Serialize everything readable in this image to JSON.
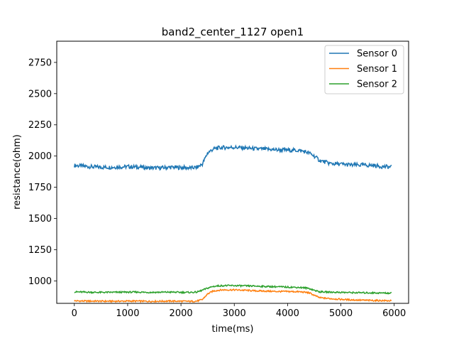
{
  "chart_data": {
    "type": "line",
    "title": "band2_center_1127 open1",
    "xlabel": "time(ms)",
    "ylabel": "resistance(ohm)",
    "xlim": [
      -330,
      6270
    ],
    "ylim": [
      820,
      2920
    ],
    "x_ticks": [
      0,
      1000,
      2000,
      3000,
      4000,
      5000,
      6000
    ],
    "y_ticks": [
      1000,
      1250,
      1500,
      1750,
      2000,
      2250,
      2500,
      2750
    ],
    "x_tick_labels": [
      "0",
      "1000",
      "2000",
      "3000",
      "4000",
      "5000",
      "6000"
    ],
    "y_tick_labels": [
      "1000",
      "1250",
      "1500",
      "1750",
      "2000",
      "2250",
      "2500",
      "2750"
    ],
    "grid": false,
    "legend_position": "top-right",
    "x": [
      0,
      200,
      400,
      600,
      800,
      1000,
      1200,
      1400,
      1600,
      1800,
      2000,
      2200,
      2300,
      2400,
      2500,
      2600,
      2700,
      2800,
      3000,
      3200,
      3400,
      3600,
      3800,
      4000,
      4200,
      4300,
      4400,
      4500,
      4600,
      4800,
      5000,
      5200,
      5400,
      5600,
      5800,
      5950
    ],
    "series": [
      {
        "name": "Sensor 0",
        "color": "#1f77b4",
        "values": [
          1925,
          1918,
          1912,
          1910,
          1912,
          1915,
          1912,
          1905,
          1905,
          1910,
          1908,
          1905,
          1910,
          1935,
          2025,
          2055,
          2065,
          2068,
          2070,
          2065,
          2058,
          2055,
          2050,
          2048,
          2045,
          2038,
          2025,
          2000,
          1965,
          1940,
          1935,
          1928,
          1928,
          1925,
          1915,
          1912
        ]
      },
      {
        "name": "Sensor 1",
        "color": "#ff7f0e",
        "values": [
          840,
          838,
          838,
          837,
          837,
          838,
          838,
          836,
          837,
          838,
          837,
          836,
          838,
          850,
          895,
          918,
          925,
          928,
          928,
          925,
          920,
          918,
          915,
          915,
          913,
          910,
          905,
          885,
          865,
          858,
          852,
          848,
          845,
          843,
          842,
          840
        ]
      },
      {
        "name": "Sensor 2",
        "color": "#2ca02c",
        "values": [
          912,
          910,
          908,
          908,
          909,
          910,
          910,
          908,
          909,
          910,
          908,
          908,
          910,
          925,
          942,
          955,
          960,
          962,
          962,
          960,
          958,
          955,
          953,
          950,
          948,
          945,
          940,
          925,
          912,
          910,
          908,
          906,
          905,
          904,
          903,
          902
        ]
      }
    ]
  }
}
